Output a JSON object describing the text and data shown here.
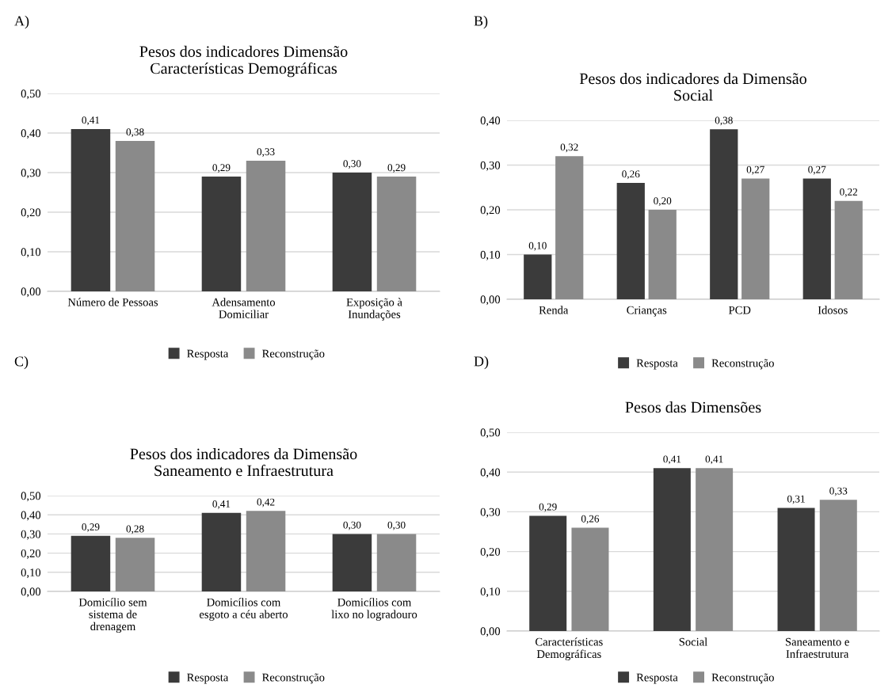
{
  "chart_data": [
    {
      "type": "bar",
      "title": "Pesos dos indicadores Dimensão\nCaracterísticas Demográficas",
      "annotations": [
        "A)"
      ],
      "categories": [
        "Número de Pessoas",
        "Adensamento\nDomiciliar",
        "Exposição à\nInundações"
      ],
      "series": [
        {
          "name": "Resposta",
          "color": "#3b3b3b",
          "values": [
            0.41,
            0.29,
            0.3
          ],
          "value_labels": [
            "0,41",
            "0,29",
            "0,30"
          ]
        },
        {
          "name": "Reconstrução",
          "color": "#8a8a8a",
          "values": [
            0.38,
            0.33,
            0.29
          ],
          "value_labels": [
            "0,38",
            "0,33",
            "0,29"
          ]
        }
      ],
      "ylim": [
        0,
        0.5
      ],
      "yticks": [
        {
          "value": 0,
          "label": "0,00"
        },
        {
          "value": 0.1,
          "label": "0,10"
        },
        {
          "value": 0.2,
          "label": "0,20"
        },
        {
          "value": 0.3,
          "label": "0,30"
        },
        {
          "value": 0.4,
          "label": "0,40"
        },
        {
          "value": 0.5,
          "label": "0,50"
        }
      ],
      "grid": "y",
      "legend": "bottom"
    },
    {
      "type": "bar",
      "title": "Pesos dos indicadores da Dimensão\nSocial",
      "annotations": [
        "B)"
      ],
      "categories": [
        "Renda",
        "Crianças",
        "PCD",
        "Idosos"
      ],
      "series": [
        {
          "name": "Resposta",
          "color": "#3b3b3b",
          "values": [
            0.1,
            0.26,
            0.38,
            0.27
          ],
          "value_labels": [
            "0,10",
            "0,26",
            "0,38",
            "0,27"
          ]
        },
        {
          "name": "Reconstrução",
          "color": "#8a8a8a",
          "values": [
            0.32,
            0.2,
            0.27,
            0.22
          ],
          "value_labels": [
            "0,32",
            "0,20",
            "0,27",
            "0,22"
          ]
        }
      ],
      "ylim": [
        0,
        0.4
      ],
      "yticks": [
        {
          "value": 0,
          "label": "0,00"
        },
        {
          "value": 0.1,
          "label": "0,10"
        },
        {
          "value": 0.2,
          "label": "0,20"
        },
        {
          "value": 0.3,
          "label": "0,30"
        },
        {
          "value": 0.4,
          "label": "0,40"
        }
      ],
      "grid": "y",
      "legend": "bottom"
    },
    {
      "type": "bar",
      "title": "Pesos dos indicadores da Dimensão\nSaneamento e Infraestrutura",
      "annotations": [
        "C)"
      ],
      "categories": [
        "Domicílio sem\nsistema de\ndrenagem",
        "Domicílios com\nesgoto a céu aberto",
        "Domicílios com\nlixo no logradouro"
      ],
      "series": [
        {
          "name": "Resposta",
          "color": "#3b3b3b",
          "values": [
            0.29,
            0.41,
            0.3
          ],
          "value_labels": [
            "0,29",
            "0,41",
            "0,30"
          ]
        },
        {
          "name": "Reconstrução",
          "color": "#8a8a8a",
          "values": [
            0.28,
            0.42,
            0.3
          ],
          "value_labels": [
            "0,28",
            "0,42",
            "0,30"
          ]
        }
      ],
      "ylim": [
        0,
        0.5
      ],
      "yticks": [
        {
          "value": 0,
          "label": "0,00"
        },
        {
          "value": 0.1,
          "label": "0,10"
        },
        {
          "value": 0.2,
          "label": "0,20"
        },
        {
          "value": 0.3,
          "label": "0,30"
        },
        {
          "value": 0.4,
          "label": "0,40"
        },
        {
          "value": 0.5,
          "label": "0,50"
        }
      ],
      "grid": "y",
      "legend": "bottom"
    },
    {
      "type": "bar",
      "title": "Pesos das Dimensões",
      "annotations": [
        "D)"
      ],
      "categories": [
        "Características\nDemográficas",
        "Social",
        "Saneamento e\nInfraestrutura"
      ],
      "series": [
        {
          "name": "Resposta",
          "color": "#3b3b3b",
          "values": [
            0.29,
            0.41,
            0.31
          ],
          "value_labels": [
            "0,29",
            "0,41",
            "0,31"
          ]
        },
        {
          "name": "Reconstrução",
          "color": "#8a8a8a",
          "values": [
            0.26,
            0.41,
            0.33
          ],
          "value_labels": [
            "0,26",
            "0,41",
            "0,33"
          ]
        }
      ],
      "ylim": [
        0,
        0.5
      ],
      "yticks": [
        {
          "value": 0,
          "label": "0,00"
        },
        {
          "value": 0.1,
          "label": "0,10"
        },
        {
          "value": 0.2,
          "label": "0,20"
        },
        {
          "value": 0.3,
          "label": "0,30"
        },
        {
          "value": 0.4,
          "label": "0,40"
        },
        {
          "value": 0.5,
          "label": "0,50"
        }
      ],
      "grid": "y",
      "legend": "bottom"
    }
  ]
}
